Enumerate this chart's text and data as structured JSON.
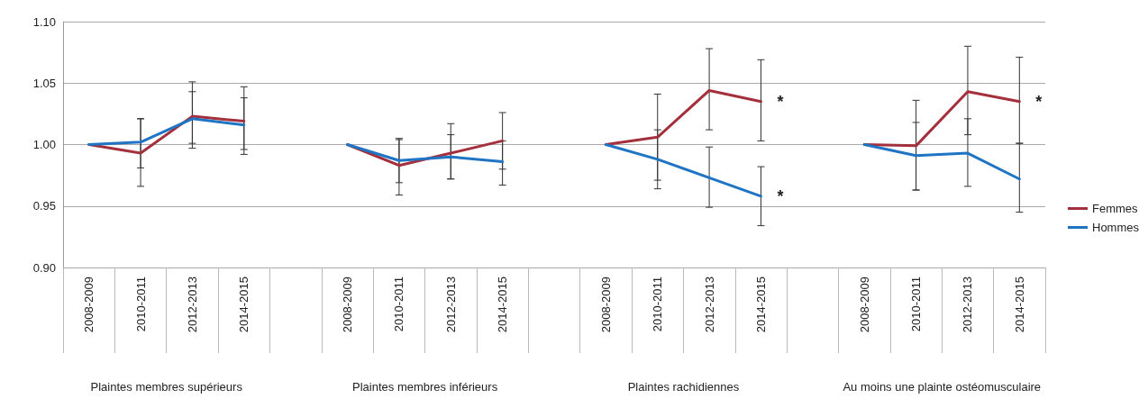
{
  "chart_data": {
    "type": "line",
    "categories": [
      "2008-2009",
      "2010-2011",
      "2012-2013",
      "2014-2015",
      null,
      "2008-2009",
      "2010-2011",
      "2012-2013",
      "2014-2015",
      null,
      "2008-2009",
      "2010-2011",
      "2012-2013",
      "2014-2015",
      null,
      "2008-2009",
      "2010-2011",
      "2012-2013",
      "2014-2015"
    ],
    "series": [
      {
        "name": "Femmes",
        "color": "#a3303c",
        "values": [
          1.0,
          0.993,
          1.023,
          1.019,
          null,
          1.0,
          0.983,
          0.993,
          1.003,
          null,
          1.0,
          1.006,
          1.044,
          1.035,
          null,
          1.0,
          0.999,
          1.043,
          1.035
        ],
        "errors": [
          null,
          [
            0.966,
            1.021
          ],
          [
            0.997,
            1.051
          ],
          [
            0.992,
            1.047
          ],
          null,
          null,
          [
            0.959,
            1.005
          ],
          [
            0.972,
            1.017
          ],
          [
            0.98,
            1.026
          ],
          null,
          null,
          [
            0.971,
            1.041
          ],
          [
            1.012,
            1.078
          ],
          [
            1.003,
            1.069
          ],
          null,
          null,
          [
            0.963,
            1.036
          ],
          [
            1.008,
            1.08
          ],
          [
            1.001,
            1.071
          ]
        ],
        "value_labels": [
          null,
          null,
          null,
          null,
          null,
          null,
          null,
          null,
          null,
          null,
          null,
          null,
          null,
          "*",
          null,
          null,
          null,
          null,
          "*"
        ]
      },
      {
        "name": "Hommes",
        "color": "#1f74c4",
        "values": [
          1.0,
          1.002,
          1.021,
          1.016,
          null,
          1.0,
          0.987,
          0.99,
          0.986,
          null,
          1.0,
          0.988,
          0.973,
          0.958,
          null,
          1.0,
          0.991,
          0.993,
          0.972
        ],
        "errors": [
          null,
          [
            0.981,
            1.021
          ],
          [
            1.001,
            1.043
          ],
          [
            0.996,
            1.038
          ],
          null,
          null,
          [
            0.969,
            1.004
          ],
          [
            0.972,
            1.008
          ],
          [
            0.967,
            1.003
          ],
          null,
          null,
          [
            0.964,
            1.012
          ],
          [
            0.949,
            0.998
          ],
          [
            0.934,
            0.982
          ],
          null,
          null,
          [
            0.963,
            1.018
          ],
          [
            0.966,
            1.021
          ],
          [
            0.945,
            1.001
          ]
        ],
        "value_labels": [
          null,
          null,
          null,
          null,
          null,
          null,
          null,
          null,
          null,
          null,
          null,
          null,
          null,
          "*",
          null,
          null,
          null,
          null,
          null
        ]
      }
    ],
    "annotations": [
      "Plaintes membres supérieurs",
      "Plaintes membres inférieurs",
      "Plaintes rachidiennes",
      "Au moins une plainte ostéomusculaire"
    ],
    "ylim": [
      0.9,
      1.1
    ],
    "yticks": [
      {
        "value": 0.9,
        "label": "0.90"
      },
      {
        "value": 0.95,
        "label": "0.95"
      },
      {
        "value": 1.0,
        "label": "1.00"
      },
      {
        "value": 1.05,
        "label": "1.05"
      },
      {
        "value": 1.1,
        "label": "1.10"
      }
    ],
    "grid": "y",
    "legend": "right",
    "marker": "none",
    "line_style": "solid"
  }
}
